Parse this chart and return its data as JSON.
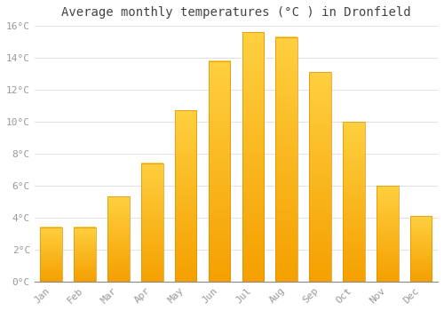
{
  "title": "Average monthly temperatures (°C ) in Dronfield",
  "months": [
    "Jan",
    "Feb",
    "Mar",
    "Apr",
    "May",
    "Jun",
    "Jul",
    "Aug",
    "Sep",
    "Oct",
    "Nov",
    "Dec"
  ],
  "values": [
    3.4,
    3.4,
    5.3,
    7.4,
    10.7,
    13.8,
    15.6,
    15.3,
    13.1,
    10.0,
    6.0,
    4.1
  ],
  "bar_color_bottom": "#F5A800",
  "bar_color_top": "#FFD040",
  "bar_edge_color": "#E09000",
  "background_color": "#FFFFFF",
  "plot_background": "#FFFFFF",
  "grid_color": "#DDDDDD",
  "ylim": [
    0,
    16
  ],
  "ytick_step": 2,
  "title_fontsize": 10,
  "tick_fontsize": 8,
  "tick_font_color": "#999999",
  "title_color": "#444444"
}
